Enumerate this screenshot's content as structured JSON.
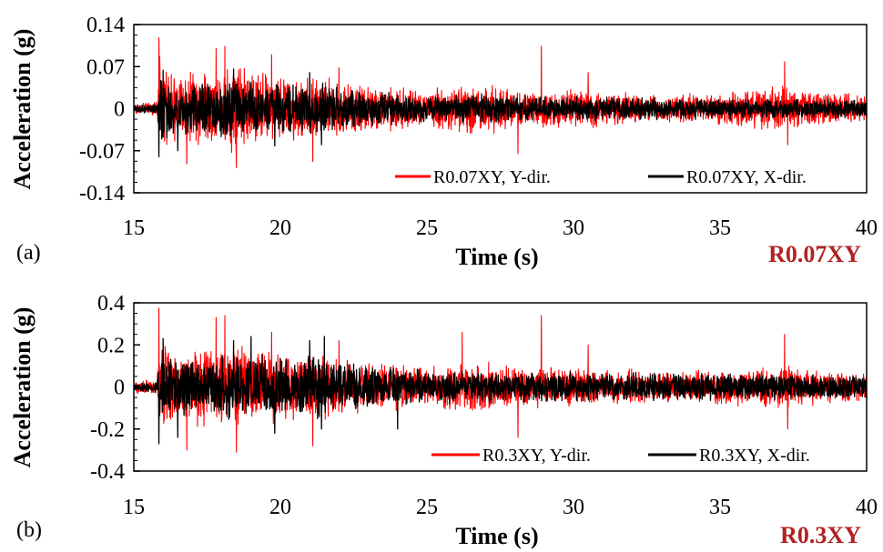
{
  "chart_data": [
    {
      "type": "line",
      "panel_label": "(a)",
      "case_label": "R0.07XY",
      "xlabel": "Time (s)",
      "ylabel": "Acceleration (g)",
      "xlim": [
        15,
        40
      ],
      "ylim": [
        -0.14,
        0.14
      ],
      "xticks": [
        "15",
        "20",
        "25",
        "30",
        "35",
        "40"
      ],
      "yticks": [
        "0.14",
        "0.07",
        "0",
        "-0.07",
        "-0.14"
      ],
      "ytick_values": [
        0.14,
        0.07,
        0,
        -0.07,
        -0.14
      ],
      "series": [
        {
          "name": "R0.07XY, Y-dir.",
          "color": "#ff0000",
          "peak_max": 0.118,
          "peak_min": -0.098,
          "seed": 11,
          "env": [
            [
              15,
              0.01
            ],
            [
              15.8,
              0.012
            ],
            [
              15.85,
              0.08
            ],
            [
              16.5,
              0.05
            ],
            [
              18.3,
              0.07
            ],
            [
              19.5,
              0.055
            ],
            [
              21.5,
              0.05
            ],
            [
              22.5,
              0.04
            ],
            [
              25,
              0.03
            ],
            [
              26.5,
              0.04
            ],
            [
              27.5,
              0.035
            ],
            [
              28,
              0.03
            ],
            [
              31,
              0.028
            ],
            [
              33,
              0.022
            ],
            [
              35,
              0.025
            ],
            [
              37.2,
              0.035
            ],
            [
              40,
              0.02
            ]
          ],
          "spikes": [
            [
              15.85,
              0.118
            ],
            [
              16.8,
              -0.092
            ],
            [
              17.8,
              0.1
            ],
            [
              18.1,
              0.104
            ],
            [
              18.5,
              0.104
            ],
            [
              18.5,
              -0.098
            ],
            [
              19.7,
              0.09
            ],
            [
              21.1,
              -0.088
            ],
            [
              22.0,
              0.068
            ],
            [
              28.1,
              -0.075
            ],
            [
              28.9,
              0.104
            ],
            [
              30.5,
              0.06
            ],
            [
              37.2,
              0.078
            ],
            [
              37.3,
              -0.06
            ]
          ]
        },
        {
          "name": "R0.07XY, X-dir.",
          "color": "#000000",
          "peak_max": 0.066,
          "peak_min": -0.08,
          "seed": 23,
          "env": [
            [
              15,
              0.006
            ],
            [
              15.8,
              0.008
            ],
            [
              15.85,
              0.05
            ],
            [
              16.5,
              0.04
            ],
            [
              18.5,
              0.045
            ],
            [
              20,
              0.038
            ],
            [
              21.5,
              0.04
            ],
            [
              22.5,
              0.03
            ],
            [
              25,
              0.02
            ],
            [
              26.5,
              0.022
            ],
            [
              28,
              0.02
            ],
            [
              31,
              0.018
            ],
            [
              35,
              0.016
            ],
            [
              40,
              0.014
            ]
          ],
          "spikes": [
            [
              15.85,
              -0.08
            ],
            [
              16.0,
              0.064
            ],
            [
              16.5,
              -0.07
            ],
            [
              18.4,
              0.066
            ],
            [
              19.8,
              -0.062
            ],
            [
              21.0,
              0.06
            ],
            [
              21.4,
              -0.06
            ]
          ]
        }
      ]
    },
    {
      "type": "line",
      "panel_label": "(b)",
      "case_label": "R0.3XY",
      "xlabel": "Time (s)",
      "ylabel": "Acceleration (g)",
      "xlim": [
        15,
        40
      ],
      "ylim": [
        -0.4,
        0.4
      ],
      "xticks": [
        "15",
        "20",
        "25",
        "30",
        "35",
        "40"
      ],
      "yticks": [
        "0.4",
        "0.2",
        "0",
        "-0.2",
        "-0.4"
      ],
      "ytick_values": [
        0.4,
        0.2,
        0,
        -0.2,
        -0.4
      ],
      "series": [
        {
          "name": "R0.3XY, Y-dir.",
          "color": "#ff0000",
          "peak_max": 0.375,
          "peak_min": -0.31,
          "seed": 37,
          "env": [
            [
              15,
              0.03
            ],
            [
              15.8,
              0.035
            ],
            [
              15.85,
              0.22
            ],
            [
              16.5,
              0.15
            ],
            [
              18.3,
              0.2
            ],
            [
              19.5,
              0.16
            ],
            [
              21.5,
              0.15
            ],
            [
              22.5,
              0.12
            ],
            [
              25,
              0.09
            ],
            [
              26.5,
              0.12
            ],
            [
              27.5,
              0.1
            ],
            [
              28,
              0.09
            ],
            [
              31,
              0.085
            ],
            [
              33,
              0.07
            ],
            [
              35,
              0.075
            ],
            [
              37.2,
              0.1
            ],
            [
              40,
              0.06
            ]
          ],
          "spikes": [
            [
              15.85,
              0.375
            ],
            [
              16.8,
              -0.3
            ],
            [
              17.8,
              0.33
            ],
            [
              18.1,
              0.34
            ],
            [
              18.5,
              0.34
            ],
            [
              18.5,
              -0.31
            ],
            [
              19.7,
              0.26
            ],
            [
              21.1,
              -0.28
            ],
            [
              22.0,
              0.22
            ],
            [
              26.2,
              0.26
            ],
            [
              28.1,
              -0.24
            ],
            [
              28.9,
              0.34
            ],
            [
              30.5,
              0.2
            ],
            [
              37.2,
              0.25
            ],
            [
              37.3,
              -0.2
            ]
          ]
        },
        {
          "name": "R0.3XY, X-dir.",
          "color": "#000000",
          "peak_max": 0.24,
          "peak_min": -0.27,
          "seed": 53,
          "env": [
            [
              15,
              0.02
            ],
            [
              15.8,
              0.025
            ],
            [
              15.85,
              0.16
            ],
            [
              16.5,
              0.13
            ],
            [
              18.5,
              0.15
            ],
            [
              20,
              0.13
            ],
            [
              21.5,
              0.14
            ],
            [
              22.5,
              0.1
            ],
            [
              25,
              0.07
            ],
            [
              26.5,
              0.075
            ],
            [
              28,
              0.07
            ],
            [
              31,
              0.065
            ],
            [
              35,
              0.06
            ],
            [
              40,
              0.05
            ]
          ],
          "spikes": [
            [
              15.85,
              -0.27
            ],
            [
              16.0,
              0.23
            ],
            [
              16.5,
              -0.24
            ],
            [
              18.4,
              0.22
            ],
            [
              19.0,
              0.24
            ],
            [
              19.8,
              -0.22
            ],
            [
              21.0,
              0.22
            ],
            [
              21.5,
              0.24
            ],
            [
              21.4,
              -0.2
            ],
            [
              24.0,
              -0.2
            ]
          ]
        }
      ]
    }
  ],
  "colors": {
    "case_label": "#b22222",
    "axis": "#000000"
  }
}
